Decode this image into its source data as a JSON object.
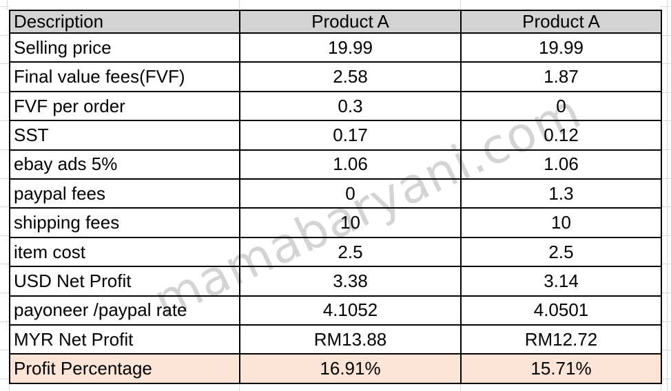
{
  "watermark": {
    "text": "mamabaryani.com"
  },
  "table": {
    "columns": [
      "Description",
      "Product A",
      "Product A"
    ],
    "rows": [
      {
        "label": "Selling price",
        "product_a1": "19.99",
        "product_a2": "19.99",
        "highlight": false
      },
      {
        "label": "Final value fees(FVF)",
        "product_a1": "2.58",
        "product_a2": "1.87",
        "highlight": false
      },
      {
        "label": "FVF per order",
        "product_a1": "0.3",
        "product_a2": "0",
        "highlight": false
      },
      {
        "label": "SST",
        "product_a1": "0.17",
        "product_a2": "0.12",
        "highlight": false
      },
      {
        "label": "ebay ads 5%",
        "product_a1": "1.06",
        "product_a2": "1.06",
        "highlight": false
      },
      {
        "label": "paypal fees",
        "product_a1": "0",
        "product_a2": "1.3",
        "highlight": false
      },
      {
        "label": "shipping fees",
        "product_a1": "10",
        "product_a2": "10",
        "highlight": false
      },
      {
        "label": "item cost",
        "product_a1": "2.5",
        "product_a2": "2.5",
        "highlight": false
      },
      {
        "label": "USD Net Profit",
        "product_a1": "3.38",
        "product_a2": "3.14",
        "highlight": false
      },
      {
        "label": "payoneer /paypal rate",
        "product_a1": "4.1052",
        "product_a2": "4.0501",
        "highlight": false
      },
      {
        "label": "MYR Net Profit",
        "product_a1": "RM13.88",
        "product_a2": "RM12.72",
        "highlight": false
      },
      {
        "label": "Profit Percentage",
        "product_a1": "16.91%",
        "product_a2": "15.71%",
        "highlight": true
      }
    ]
  },
  "colors": {
    "header_bg": "#d3d3d3",
    "highlight_bg": "#fce4d6",
    "border": "#000000",
    "gridline": "#d9d9d9",
    "watermark": "#d4d4d4"
  }
}
